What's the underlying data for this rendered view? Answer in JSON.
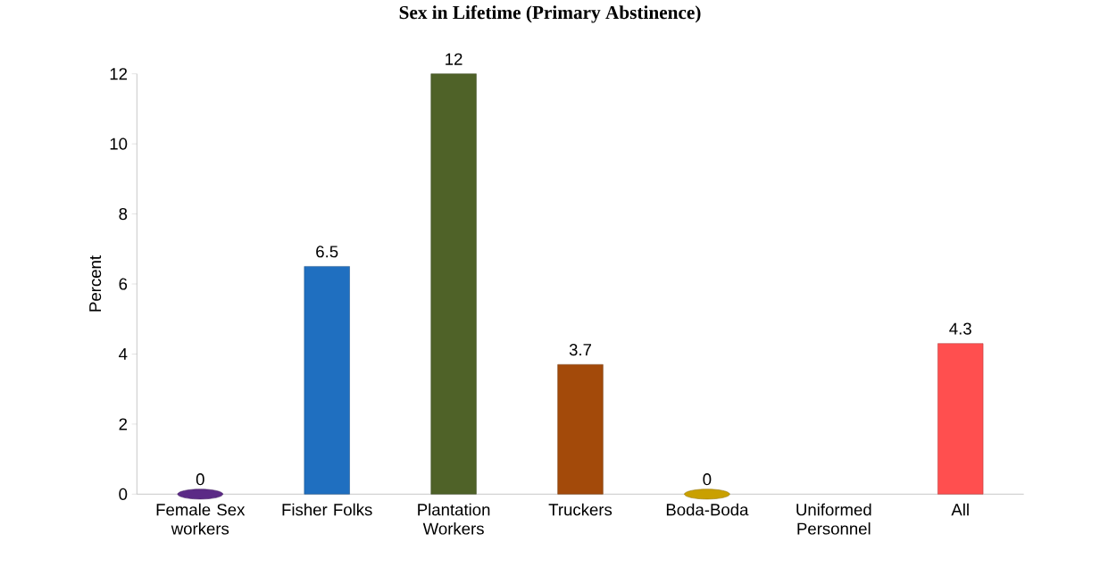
{
  "chart_data": {
    "type": "bar",
    "title": "Sex in Lifetime (Primary Abstinence)",
    "ylabel": "Percent",
    "categories": [
      "Female Sex workers",
      "Fisher Folks",
      "Plantation Workers",
      "Truckers",
      "Boda-Boda",
      "Uniformed Personnel",
      "All"
    ],
    "values": [
      0,
      6.5,
      12,
      3.7,
      0,
      null,
      4.3
    ],
    "colors": [
      "#5b2a86",
      "#1f6fc0",
      "#4f6228",
      "#a34a0a",
      "#c9a000",
      "#7f7f7f",
      "#ff4f4f"
    ],
    "ylim": [
      0,
      12
    ],
    "yticks": [
      0,
      2,
      4,
      6,
      8,
      10,
      12
    ],
    "data_labels": true,
    "grid": false
  }
}
